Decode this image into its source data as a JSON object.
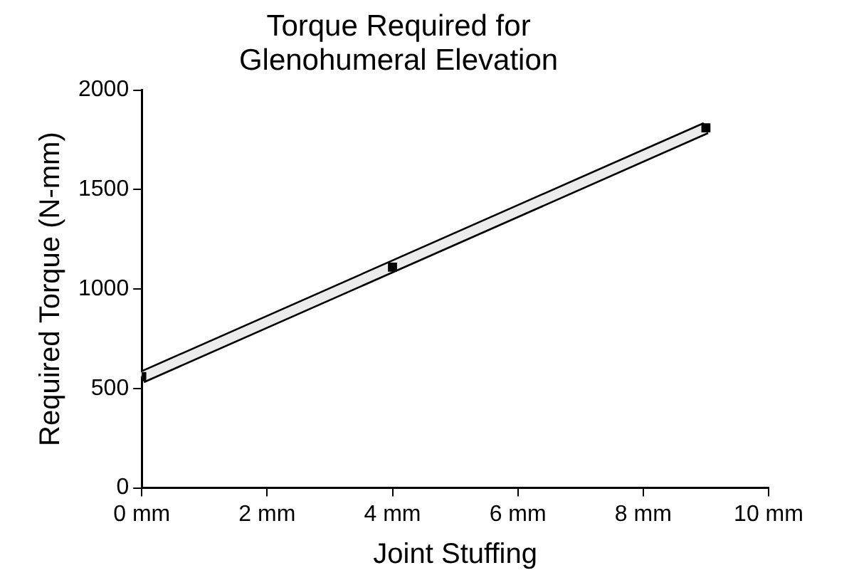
{
  "chart_data": {
    "type": "scatter",
    "title": "Torque Required for\nGlenohumeral Elevation",
    "xlabel": "Joint Stuffing",
    "ylabel": "Required Torque (N-mm)",
    "x": [
      0,
      4,
      9
    ],
    "series": [
      {
        "color": "#000000",
        "marker": "square",
        "values": [
          560,
          1110,
          1810
        ]
      },
      {
        "type": "line",
        "color": "#000000",
        "x": [
          0,
          9
        ],
        "values": [
          557,
          1809
        ],
        "marker": "none"
      }
    ],
    "xlim": [
      0,
      10
    ],
    "xticks": [
      {
        "value": 0,
        "label": "0 mm"
      },
      {
        "value": 2,
        "label": "2 mm"
      },
      {
        "value": 4,
        "label": "4 mm"
      },
      {
        "value": 6,
        "label": "6 mm"
      },
      {
        "value": 8,
        "label": "8 mm"
      },
      {
        "value": 10,
        "label": "10 mm"
      }
    ],
    "ylim": [
      0,
      2000
    ],
    "yticks": [
      0,
      500,
      1000,
      1500,
      2000
    ],
    "grid": false,
    "legend": false
  }
}
